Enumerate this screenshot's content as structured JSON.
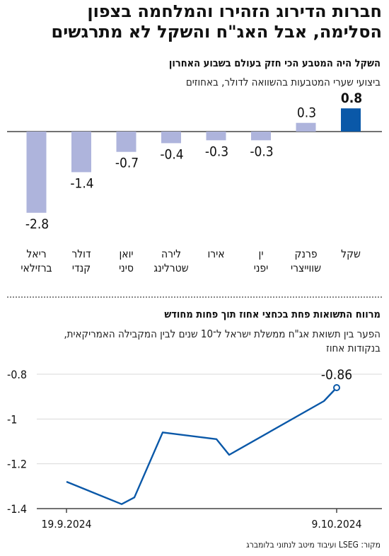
{
  "title_line1": "חברות הדירוג הזהירו והמלחמה בצפון",
  "title_line2": "הסלימה, אבל האג\"ח והשקל לא מתרגשים",
  "chart_data": [
    {
      "type": "bar",
      "title": "השקל היה המטבע הכי חזק בעולם בשבוע האחרון",
      "subtitle": "ביצועי שערי המטבעות בהשוואה לדולר, באחוזים",
      "categories": [
        [
          "שקל"
        ],
        [
          "פרנק",
          "שווייצרי"
        ],
        [
          "ין",
          "יפני"
        ],
        [
          "אירו"
        ],
        [
          "לירה",
          "שטרלינג"
        ],
        [
          "יואן",
          "סיני"
        ],
        [
          "דולר",
          "קנדי"
        ],
        [
          "ריאל",
          "ברזילאי"
        ]
      ],
      "values": [
        0.8,
        0.3,
        -0.3,
        -0.3,
        -0.4,
        -0.7,
        -1.4,
        -2.8
      ],
      "value_labels": [
        "0.8",
        "0.3",
        "-0.3",
        "-0.3",
        "-0.4",
        "-0.7",
        "-1.4",
        "-2.8"
      ],
      "highlight_index": 0,
      "colors": {
        "highlight": "#0a58a8",
        "default": "#aeb4dc"
      }
    },
    {
      "type": "line",
      "title": "מרווח התשואות פחת בכחצי אחוז תוך פחות מחודש",
      "subtitle_line1": "הפער בין תשואת אג\"ח ממשלת ישראל ל־10 שנים לבין המקבילה האמריקאית,",
      "subtitle_line2": "בנקודות אחוז",
      "x": [
        "19.9.2024",
        "23.9.2024",
        "24.9.2024",
        "26.9.2024",
        "1.10.2024",
        "2.10.2024",
        "8.10.2024",
        "9.10.2024"
      ],
      "y": [
        -1.28,
        -1.38,
        -1.35,
        -1.06,
        -1.09,
        -1.16,
        -0.92,
        -0.86
      ],
      "x_tick_labels": [
        "19.9.2024",
        "9.10.2024"
      ],
      "y_ticks": [
        -0.8,
        -1,
        -1.2,
        -1.4
      ],
      "ylim": [
        -1.4,
        -0.8
      ],
      "last_value_label": "-0.86",
      "line_color": "#0a58a8"
    }
  ],
  "source": "מקור: LSEG ועיבוד מיטב לנתוני בלומברג"
}
